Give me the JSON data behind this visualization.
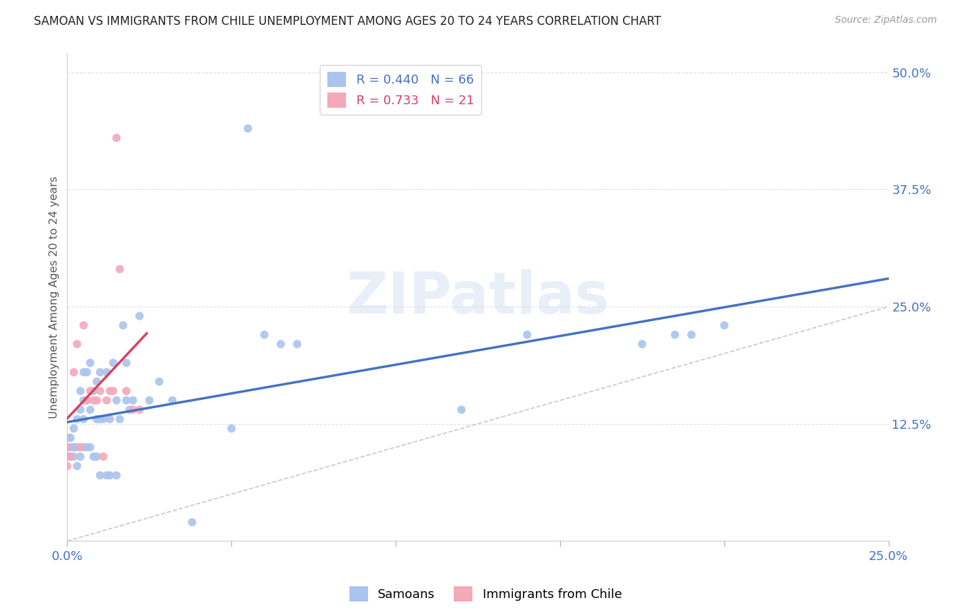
{
  "title": "SAMOAN VS IMMIGRANTS FROM CHILE UNEMPLOYMENT AMONG AGES 20 TO 24 YEARS CORRELATION CHART",
  "source": "Source: ZipAtlas.com",
  "ylabel_label": "Unemployment Among Ages 20 to 24 years",
  "xlim": [
    0.0,
    0.25
  ],
  "ylim": [
    0.0,
    0.52
  ],
  "watermark": "ZIPatlas",
  "samoans_x": [
    0.0,
    0.0,
    0.0,
    0.0,
    0.0,
    0.001,
    0.001,
    0.001,
    0.002,
    0.002,
    0.002,
    0.002,
    0.003,
    0.003,
    0.003,
    0.004,
    0.004,
    0.004,
    0.005,
    0.005,
    0.005,
    0.005,
    0.006,
    0.006,
    0.006,
    0.007,
    0.007,
    0.007,
    0.008,
    0.008,
    0.009,
    0.009,
    0.009,
    0.01,
    0.01,
    0.01,
    0.011,
    0.012,
    0.012,
    0.013,
    0.013,
    0.014,
    0.015,
    0.015,
    0.016,
    0.017,
    0.018,
    0.018,
    0.019,
    0.02,
    0.022,
    0.025,
    0.028,
    0.032,
    0.038,
    0.05,
    0.055,
    0.06,
    0.065,
    0.07,
    0.12,
    0.14,
    0.175,
    0.185,
    0.19,
    0.2
  ],
  "samoans_y": [
    0.09,
    0.09,
    0.1,
    0.1,
    0.11,
    0.09,
    0.1,
    0.11,
    0.09,
    0.1,
    0.1,
    0.12,
    0.08,
    0.1,
    0.13,
    0.09,
    0.14,
    0.16,
    0.1,
    0.13,
    0.15,
    0.18,
    0.1,
    0.15,
    0.18,
    0.1,
    0.14,
    0.19,
    0.09,
    0.16,
    0.09,
    0.13,
    0.17,
    0.07,
    0.13,
    0.18,
    0.13,
    0.07,
    0.18,
    0.07,
    0.13,
    0.19,
    0.07,
    0.15,
    0.13,
    0.23,
    0.15,
    0.19,
    0.14,
    0.15,
    0.24,
    0.15,
    0.17,
    0.15,
    0.02,
    0.12,
    0.44,
    0.22,
    0.21,
    0.21,
    0.14,
    0.22,
    0.21,
    0.22,
    0.22,
    0.23
  ],
  "chile_x": [
    0.0,
    0.0,
    0.001,
    0.002,
    0.003,
    0.004,
    0.005,
    0.006,
    0.007,
    0.008,
    0.009,
    0.01,
    0.011,
    0.012,
    0.013,
    0.014,
    0.015,
    0.016,
    0.018,
    0.02,
    0.022
  ],
  "chile_y": [
    0.08,
    0.1,
    0.09,
    0.18,
    0.21,
    0.1,
    0.23,
    0.15,
    0.16,
    0.15,
    0.15,
    0.16,
    0.09,
    0.15,
    0.16,
    0.16,
    0.43,
    0.29,
    0.16,
    0.14,
    0.14
  ],
  "samoans_color": "#aac4ed",
  "chile_color": "#f4a8b8",
  "trendline_samoans_color": "#4472c4",
  "trendline_chile_color": "#d94060",
  "diagonal_color": "#c8c8c8",
  "background_color": "#ffffff",
  "grid_color": "#e0e0e0",
  "title_color": "#222222",
  "tick_label_color": "#4472c4",
  "ylabel_color": "#555555"
}
